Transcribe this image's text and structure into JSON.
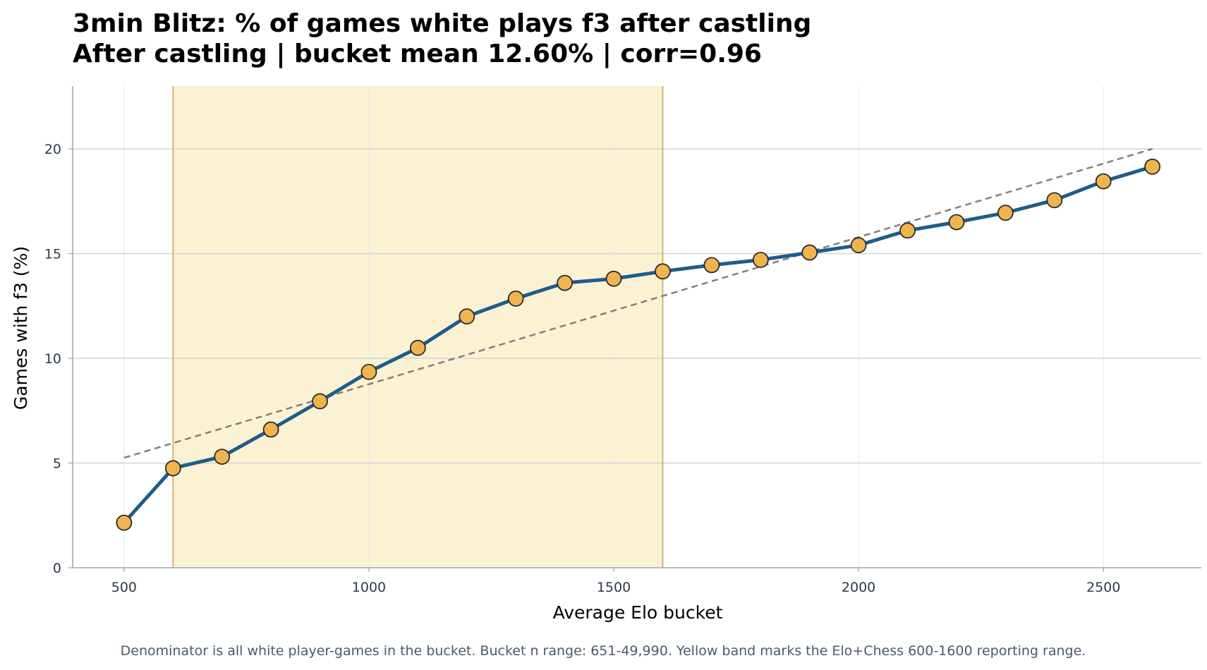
{
  "chart_data": {
    "type": "line",
    "title": "3min Blitz: % of games white plays f3 after castling",
    "subtitle": "After castling | bucket mean 12.60% | corr=0.96",
    "xlabel": "Average Elo bucket",
    "ylabel": "Games with f3 (%)",
    "footnote": "Denominator is all white player-games in the bucket. Bucket n range: 651-49,990. Yellow band marks the Elo+Chess 600-1600 reporting range.",
    "xlim": [
      395,
      2700
    ],
    "ylim": [
      0,
      23
    ],
    "x_ticks": [
      500,
      1000,
      1500,
      2000,
      2500
    ],
    "y_ticks": [
      0,
      5,
      10,
      15,
      20
    ],
    "grid": true,
    "highlight_band": {
      "x_start": 600,
      "x_end": 1600,
      "color": "#fbf2d3",
      "edge_color": "#d4a96a"
    },
    "series": [
      {
        "line_color": "#1f5c8a",
        "marker_color": "#f0b44e",
        "x": [
          500,
          600,
          700,
          800,
          900,
          1000,
          1100,
          1200,
          1300,
          1400,
          1500,
          1600,
          1700,
          1800,
          1900,
          2000,
          2100,
          2200,
          2300,
          2400,
          2500,
          2600
        ],
        "y": [
          2.15,
          4.75,
          5.3,
          6.6,
          7.95,
          9.35,
          10.5,
          12.0,
          12.85,
          13.6,
          13.8,
          14.15,
          14.45,
          14.7,
          15.05,
          15.4,
          16.1,
          16.5,
          16.95,
          17.55,
          18.45,
          19.15
        ]
      }
    ],
    "trendline": {
      "style": "dashed",
      "color": "#808080",
      "x": [
        500,
        2600
      ],
      "y": [
        5.25,
        20.0
      ]
    }
  }
}
